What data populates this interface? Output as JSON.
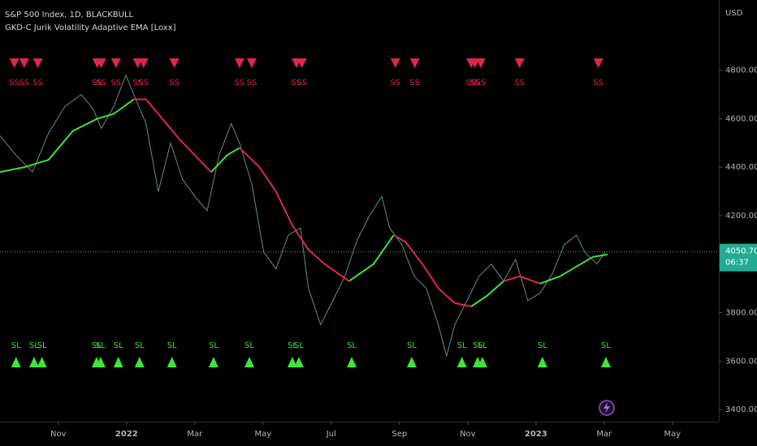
{
  "chart_data": {
    "type": "line",
    "title": "S&P 500 Index, 1D, BLACKBULL",
    "subtitle": "GKD-C Jurik Volatility Adaptive EMA [Loxx]",
    "y_axis_unit": "USD",
    "xlim": [
      -0.71,
      20.36
    ],
    "xticks": [
      {
        "value": 1,
        "label": "Nov"
      },
      {
        "value": 3,
        "label": "2022"
      },
      {
        "value": 5,
        "label": "Mar"
      },
      {
        "value": 7,
        "label": "May"
      },
      {
        "value": 9,
        "label": "Jul"
      },
      {
        "value": 11,
        "label": "Sep"
      },
      {
        "value": 13,
        "label": "Nov"
      },
      {
        "value": 15,
        "label": "2023"
      },
      {
        "value": 17,
        "label": "Mar"
      },
      {
        "value": 19,
        "label": "May"
      }
    ],
    "ylim": [
      3350,
      5090
    ],
    "yticks": [
      {
        "value": 3400,
        "label": "3400.00"
      },
      {
        "value": 3600,
        "label": "3600.00"
      },
      {
        "value": 3800,
        "label": "3800.00"
      },
      {
        "value": 4000,
        "label": "4000.00"
      },
      {
        "value": 4200,
        "label": "4200.00"
      },
      {
        "value": 4400,
        "label": "4400.00"
      },
      {
        "value": 4600,
        "label": "4600.00"
      },
      {
        "value": 4800,
        "label": "4800.00"
      }
    ],
    "last_price": {
      "value": 4050.7,
      "label": "4050.70",
      "countdown": "06:37",
      "color": "#22ab94"
    },
    "price": {
      "color": "#5d8f8a",
      "x": [
        -0.71,
        -0.24,
        0.24,
        0.71,
        1.19,
        1.67,
        2.02,
        2.26,
        2.62,
        2.98,
        3.21,
        3.57,
        3.93,
        4.29,
        4.64,
        5.0,
        5.36,
        5.71,
        6.07,
        6.31,
        6.67,
        7.02,
        7.38,
        7.74,
        8.1,
        8.33,
        8.69,
        9.05,
        9.4,
        9.76,
        10.12,
        10.48,
        10.71,
        11.07,
        11.43,
        11.79,
        12.14,
        12.38,
        12.62,
        12.98,
        13.33,
        13.69,
        14.05,
        14.4,
        14.76,
        15.12,
        15.48,
        15.83,
        16.19,
        16.43,
        16.79,
        17.02
      ],
      "values": [
        4530,
        4450,
        4380,
        4540,
        4650,
        4700,
        4640,
        4560,
        4650,
        4780,
        4700,
        4580,
        4300,
        4500,
        4350,
        4280,
        4220,
        4450,
        4580,
        4500,
        4330,
        4050,
        3980,
        4120,
        4150,
        3900,
        3750,
        3850,
        3950,
        4100,
        4200,
        4280,
        4150,
        4080,
        3950,
        3900,
        3750,
        3620,
        3750,
        3850,
        3950,
        4000,
        3930,
        4020,
        3850,
        3880,
        3960,
        4080,
        4120,
        4050,
        4000,
        4050
      ]
    },
    "ema_x": [
      -0.71,
      0,
      0.71,
      1.43,
      2.14,
      2.62,
      3.21,
      3.57,
      4.05,
      4.52,
      5.0,
      5.48,
      5.95,
      6.31,
      6.9,
      7.38,
      7.86,
      8.33,
      8.81,
      9.52,
      10.24,
      10.83,
      11.19,
      11.67,
      12.14,
      12.62,
      13.1,
      13.57,
      14.05,
      14.52,
      15.12,
      15.71,
      16.19,
      16.67,
      17.1
    ],
    "series": [
      {
        "color": "#3ee53b",
        "values": [
          4380,
          4400,
          4430,
          4550,
          4600,
          4620,
          4680,
          null,
          null,
          null,
          null,
          4380,
          4450,
          4480,
          null,
          null,
          null,
          null,
          null,
          3930,
          4000,
          4120,
          null,
          null,
          null,
          null,
          3825,
          3870,
          3930,
          null,
          3920,
          3950,
          3990,
          4030,
          4040
        ]
      },
      {
        "color": "#e0264e",
        "values": [
          null,
          null,
          null,
          null,
          null,
          null,
          4680,
          4680,
          4600,
          4520,
          4450,
          4380,
          null,
          4480,
          4400,
          4300,
          4160,
          4060,
          4000,
          3930,
          null,
          4120,
          4090,
          4000,
          3900,
          3840,
          3825,
          null,
          3930,
          3950,
          3920,
          null,
          null,
          null,
          null
        ]
      }
    ],
    "signals": {
      "short": {
        "label": "SS",
        "color": "#e0264e",
        "x": [
          -0.29,
          0,
          0.4,
          2.14,
          2.26,
          2.69,
          3.33,
          3.5,
          4.4,
          6.31,
          6.67,
          7.98,
          8.14,
          10.88,
          11.45,
          13.1,
          13.21,
          13.38,
          14.52,
          16.83
        ]
      },
      "long": {
        "label": "SL",
        "color": "#3ee53b",
        "x": [
          -0.24,
          0.29,
          0.52,
          2.12,
          2.24,
          2.76,
          3.38,
          4.33,
          5.55,
          6.6,
          7.86,
          8.05,
          9.6,
          11.36,
          12.83,
          13.29,
          13.43,
          15.19,
          17.05
        ]
      }
    }
  }
}
